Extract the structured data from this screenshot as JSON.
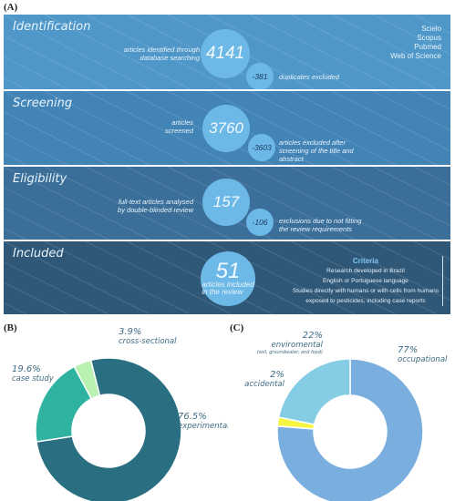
{
  "panel_labels": {
    "a": "(A)",
    "b": "(B)",
    "c": "(C)"
  },
  "flow": {
    "identification": {
      "title": "Identification",
      "left_text_1": "articles identified through",
      "left_text_2": "database searching",
      "count": "4141",
      "excluded": "-381",
      "excluded_text": "duplicates excluded",
      "sources": [
        "Scielo",
        "Scopus",
        "Pubmed",
        "Web of Science"
      ]
    },
    "screening": {
      "title": "Screening",
      "left_text_1": "articles",
      "left_text_2": "screened",
      "count": "3760",
      "excluded": "-3603",
      "excluded_text_1": "articles excluded after",
      "excluded_text_2": "screening of the title and",
      "excluded_text_3": "abstract"
    },
    "eligibility": {
      "title": "Eligibility",
      "left_text_1": "full-text articles analysed",
      "left_text_2": "by double-blinded review",
      "count": "157",
      "excluded": "-106",
      "excluded_text_1": "exclusions due to not fitting",
      "excluded_text_2": "the review requirements"
    },
    "included": {
      "title": "Included",
      "count": "51",
      "count_text_1": "articles included",
      "count_text_2": "in the review",
      "criteria_title": "Criteria",
      "criteria": [
        "Research developed in Brazil",
        "English or Portuguese language",
        "Studies directly with humans or with cells from humans",
        "exposed to pesticides, including case reports"
      ]
    }
  },
  "colors": {
    "stage1": "#4f97c8",
    "stage2": "#4384b6",
    "stage3": "#3b6f99",
    "stage4": "#2f5878",
    "circle": "#6cb8e6"
  },
  "chart_data": [
    {
      "type": "pie",
      "labels": [
        "experimental",
        "case study",
        "cross-sectional"
      ],
      "values": [
        76.5,
        19.6,
        3.9
      ],
      "display": [
        "76.5%",
        "19.6%",
        "3.9%"
      ],
      "colors": [
        "#2a6e81",
        "#2fb3a0",
        "#b9f1b0"
      ],
      "donut": true
    },
    {
      "type": "pie",
      "labels": [
        "occupational",
        "accidental",
        "enviromental"
      ],
      "sublabels": [
        "",
        "",
        "(soil, groundwater, and food)"
      ],
      "values": [
        77,
        2,
        22
      ],
      "display": [
        "77%",
        "2%",
        "22%"
      ],
      "colors": [
        "#79aedf",
        "#f6f542",
        "#85cde4"
      ],
      "donut": true
    }
  ]
}
